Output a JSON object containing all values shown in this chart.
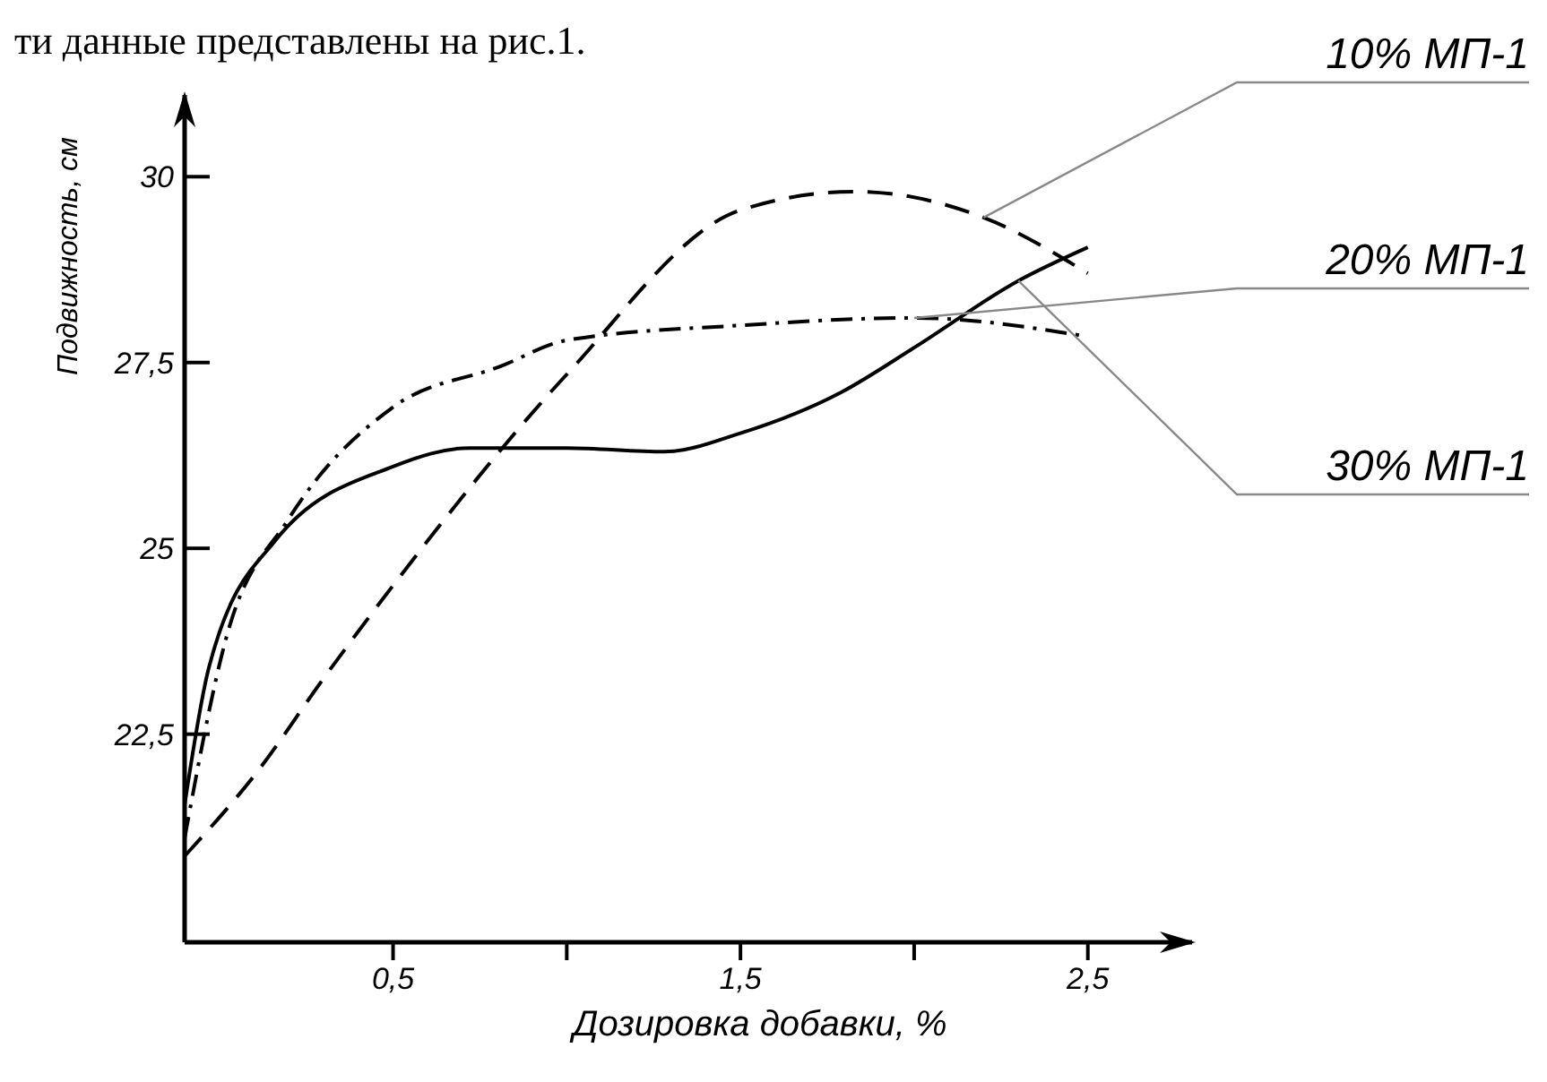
{
  "chart_data": {
    "type": "line",
    "ylabel": "Подвижность, см",
    "xlabel": "Дозировка добавки, %",
    "annotations": [
      "ти данные представлены на рис.1."
    ],
    "xlim": [
      -0.1,
      2.8
    ],
    "ylim": [
      19.7,
      31.1
    ],
    "xticks": [
      {
        "value": 0.5,
        "label": "0,5"
      },
      {
        "value": 1,
        "label": null
      },
      {
        "value": 1.5,
        "label": "1,5"
      },
      {
        "value": 2,
        "label": null
      },
      {
        "value": 2.5,
        "label": "2,5"
      }
    ],
    "yticks": [
      {
        "value": 22.5,
        "label": "22,5"
      },
      {
        "value": 25,
        "label": "25"
      },
      {
        "value": 27.5,
        "label": "27,5"
      },
      {
        "value": 30,
        "label": "30"
      }
    ],
    "grid": false,
    "legend": false,
    "marker": "none",
    "series": [
      {
        "name": "10% МП-1",
        "color": "#000000",
        "line_style": "dashed",
        "x": [
          -0.1,
          0.11,
          0.3,
          0.5,
          1.0,
          1.5,
          1.83,
          2.2,
          2.5
        ],
        "values": [
          20.86,
          22.0,
          23.25,
          24.5,
          27.34,
          29.55,
          29.8,
          29.45,
          28.7
        ]
      },
      {
        "name": "20% МП-1",
        "color": "#000000",
        "line_style": "dashdot",
        "x": [
          -0.1,
          0.02,
          0.2,
          0.5,
          0.81,
          1.0,
          1.5,
          2.0,
          2.5
        ],
        "values": [
          21.1,
          23.8,
          25.4,
          26.9,
          27.45,
          27.8,
          28.0,
          28.1,
          27.85
        ]
      },
      {
        "name": "30% МП-1",
        "color": "#000000",
        "line_style": "solid",
        "x": [
          -0.1,
          -0.03,
          0.16,
          0.5,
          0.72,
          1.0,
          1.28,
          1.5,
          1.79,
          2.0,
          2.3,
          2.5
        ],
        "values": [
          21.55,
          23.4,
          25.1,
          26.1,
          26.35,
          26.35,
          26.3,
          26.55,
          27.1,
          27.7,
          28.6,
          29.05
        ]
      }
    ]
  }
}
